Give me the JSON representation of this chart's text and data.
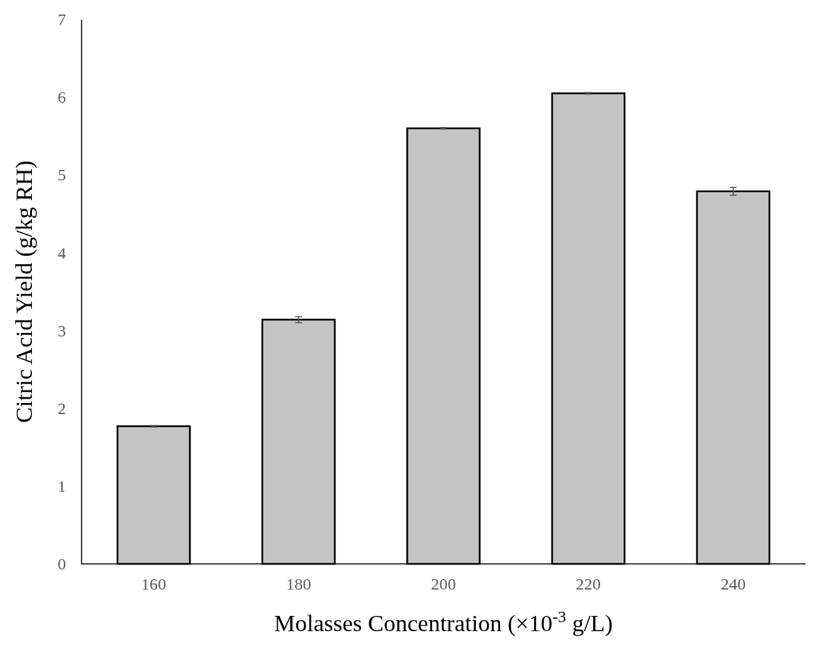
{
  "chart_data": {
    "type": "bar",
    "xlabel": "Molasses Concentration (×10$^{-3}$ g/L)",
    "ylabel": "Citric Acid Yield (g/kg RH)",
    "categories": [
      "160",
      "180",
      "200",
      "220",
      "240"
    ],
    "values": [
      1.77,
      3.14,
      5.6,
      6.05,
      4.79
    ],
    "errors": [
      0.01,
      0.04,
      0.01,
      0.01,
      0.05
    ],
    "color": "#c4c4c4",
    "ylim": [
      0,
      7
    ],
    "yticks": [
      0,
      1,
      2,
      3,
      4,
      5,
      6,
      7
    ],
    "grid": false
  }
}
